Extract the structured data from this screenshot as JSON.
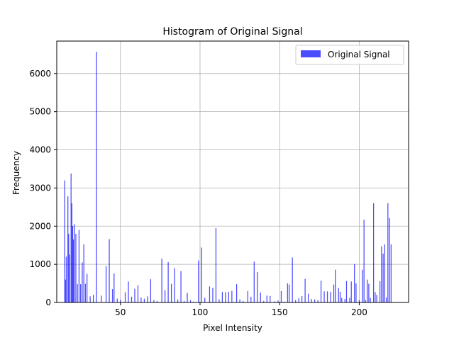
{
  "chart_data": {
    "type": "bar",
    "title": "Histogram of Original Signal",
    "xlabel": "Pixel Intensity",
    "ylabel": "Frequency",
    "xlim": [
      10,
      231
    ],
    "ylim": [
      0,
      6850
    ],
    "xticks": [
      50,
      100,
      150,
      200
    ],
    "yticks": [
      0,
      1000,
      2000,
      3000,
      4000,
      5000,
      6000
    ],
    "grid": true,
    "legend_position": "top-right",
    "bar_color": "#0000ff",
    "bar_opacity": 0.7,
    "series": [
      {
        "name": "Original Signal",
        "x": [
          15,
          15.5,
          16,
          17,
          17.5,
          18,
          19,
          19.5,
          20,
          20.5,
          21,
          22,
          23,
          24,
          25,
          26,
          27,
          28,
          29,
          31,
          33,
          35,
          38,
          41,
          43,
          45,
          46,
          48,
          50,
          53,
          55,
          57,
          59,
          61,
          63,
          65,
          67,
          69,
          71,
          73,
          76,
          78,
          80,
          82,
          84,
          86,
          88,
          90,
          92,
          94,
          96,
          99,
          101,
          103,
          106,
          108,
          110,
          112,
          114,
          116,
          118,
          120,
          123,
          125,
          127,
          130,
          132,
          134,
          136,
          138,
          140,
          142,
          144,
          147,
          149,
          151,
          153,
          155,
          156,
          158,
          160,
          162,
          164,
          166,
          168,
          170,
          172,
          174,
          176,
          178,
          180,
          182,
          184,
          185,
          187,
          188,
          189,
          191,
          192,
          194,
          195,
          197,
          198,
          200,
          202,
          203,
          204,
          205,
          206,
          207,
          209,
          210,
          211,
          213,
          214,
          215,
          216,
          217,
          218,
          219,
          220
        ],
        "values": [
          3200,
          600,
          1200,
          2780,
          1800,
          1250,
          3380,
          2600,
          2000,
          1650,
          2050,
          1800,
          480,
          1900,
          480,
          1050,
          1520,
          490,
          750,
          160,
          200,
          6570,
          180,
          950,
          1660,
          350,
          760,
          100,
          70,
          270,
          550,
          150,
          360,
          450,
          130,
          100,
          160,
          610,
          60,
          40,
          1150,
          320,
          1060,
          490,
          900,
          80,
          820,
          40,
          250,
          60,
          20,
          1100,
          1440,
          120,
          420,
          380,
          1950,
          80,
          280,
          270,
          280,
          300,
          480,
          80,
          40,
          300,
          150,
          1070,
          800,
          260,
          40,
          180,
          170,
          30,
          50,
          300,
          20,
          500,
          470,
          1180,
          60,
          110,
          170,
          620,
          230,
          90,
          80,
          60,
          570,
          290,
          290,
          280,
          470,
          860,
          380,
          280,
          120,
          90,
          560,
          120,
          550,
          1010,
          500,
          60,
          860,
          2170,
          60,
          600,
          490,
          120,
          2600,
          270,
          200,
          560,
          1470,
          1280,
          1520,
          130,
          2600,
          2210,
          1520
        ]
      }
    ]
  }
}
